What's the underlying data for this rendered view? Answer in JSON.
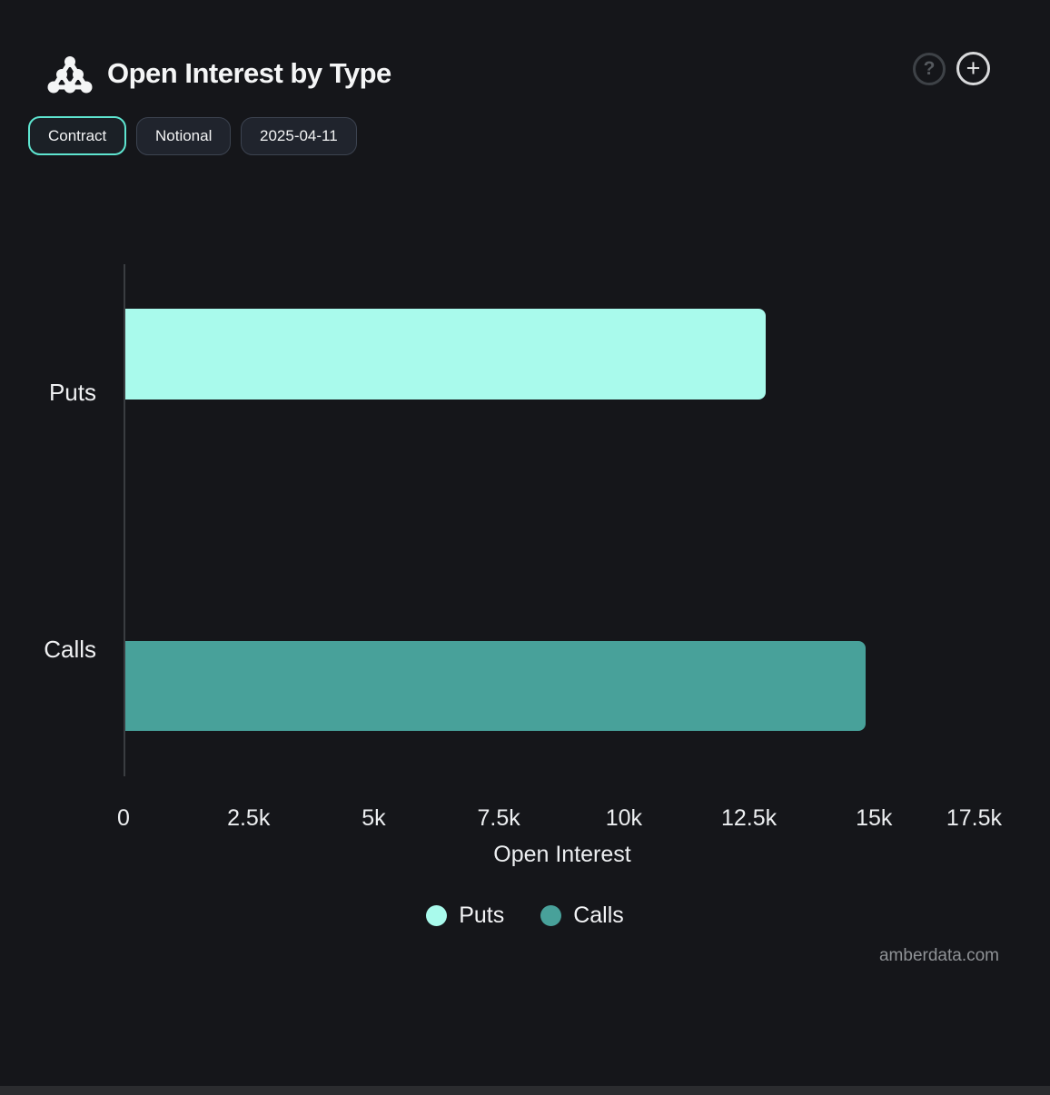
{
  "header": {
    "title": "Open Interest by Type",
    "logo": "amberdata-logo",
    "help_label": "?",
    "add_label": "+"
  },
  "toolbar": {
    "buttons": [
      {
        "label": "Contract",
        "active": true
      },
      {
        "label": "Notional",
        "active": false
      },
      {
        "label": "2025-04-11",
        "active": false
      }
    ]
  },
  "chart_data": {
    "type": "bar",
    "orientation": "horizontal",
    "title": "Open Interest by Type",
    "categories": [
      "Puts",
      "Calls"
    ],
    "values": [
      12800,
      14800
    ],
    "bar_colors": [
      "#a9faec",
      "#48a19a"
    ],
    "xlabel": "Open Interest",
    "xlim": [
      0,
      17500
    ],
    "xtick_values": [
      0,
      2500,
      5000,
      7500,
      10000,
      12500,
      15000,
      17500
    ],
    "xtick_labels": [
      "0",
      "2.5k",
      "5k",
      "7.5k",
      "10k",
      "12.5k",
      "15k",
      "17.5k"
    ],
    "grid": false,
    "legend_position": "bottom",
    "legend": [
      {
        "label": "Puts",
        "color": "#a9faec"
      },
      {
        "label": "Calls",
        "color": "#48a19a"
      }
    ]
  },
  "footer": {
    "watermark": "amberdata.com"
  },
  "colors": {
    "background": "#15161a",
    "accent": "#5ee5d0",
    "puts_bar": "#a9faec",
    "calls_bar": "#48a19a",
    "axis_line": "#3a3d41",
    "text_primary": "#f4f5f6",
    "watermark_text": "#8f9296"
  }
}
